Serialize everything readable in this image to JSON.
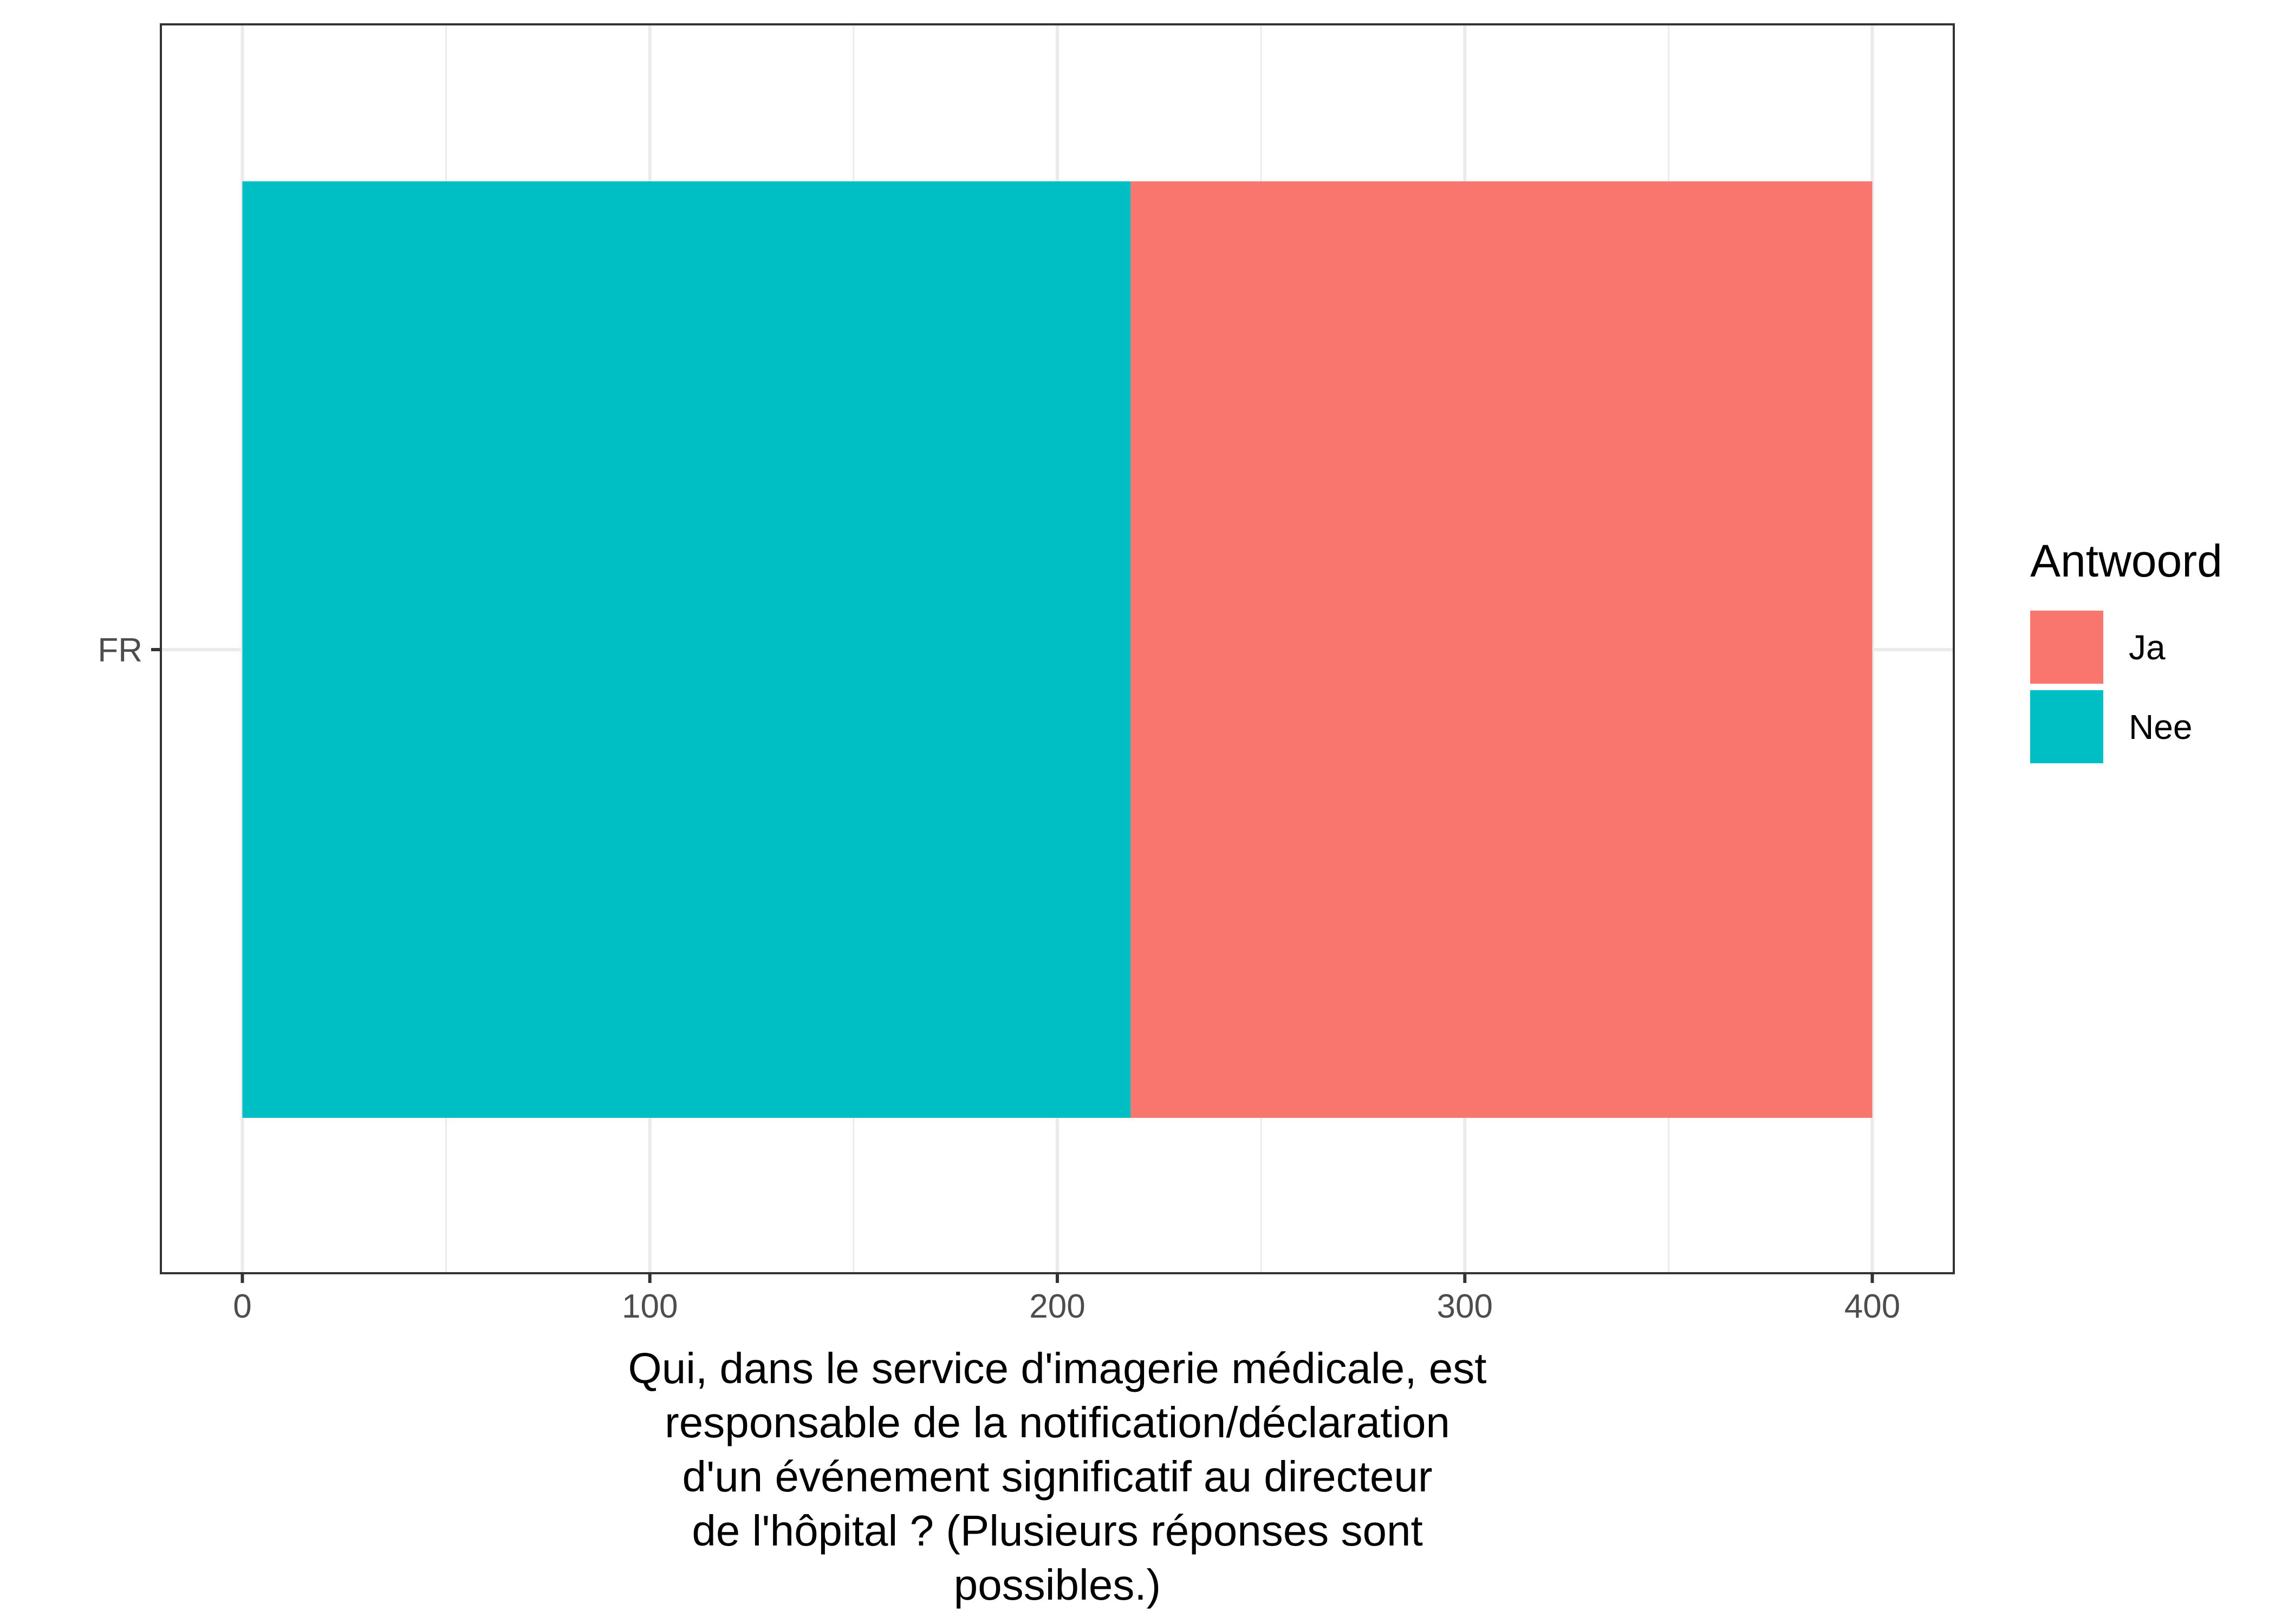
{
  "chart_data": {
    "type": "bar",
    "orientation": "horizontal",
    "stacked": true,
    "categories": [
      "FR"
    ],
    "series": [
      {
        "name": "Nee",
        "values": [
          218
        ],
        "color": "#00BFC4"
      },
      {
        "name": "Ja",
        "values": [
          182
        ],
        "color": "#F8766D"
      }
    ],
    "xlabel_lines": [
      "Qui, dans le service d'imagerie médicale, est",
      "responsable de la notification/déclaration",
      "d'un événement significatif au directeur",
      "de l'hôpital ? (Plusieurs réponses sont",
      "possibles.)"
    ],
    "xticks": [
      "0",
      "100",
      "200",
      "300",
      "400"
    ],
    "xlim": [
      -20,
      420
    ],
    "legend": {
      "title": "Antwoord",
      "position": "right",
      "entries": [
        {
          "label": "Ja",
          "color": "#F8766D"
        },
        {
          "label": "Nee",
          "color": "#00BFC4"
        }
      ]
    },
    "grid": true
  }
}
